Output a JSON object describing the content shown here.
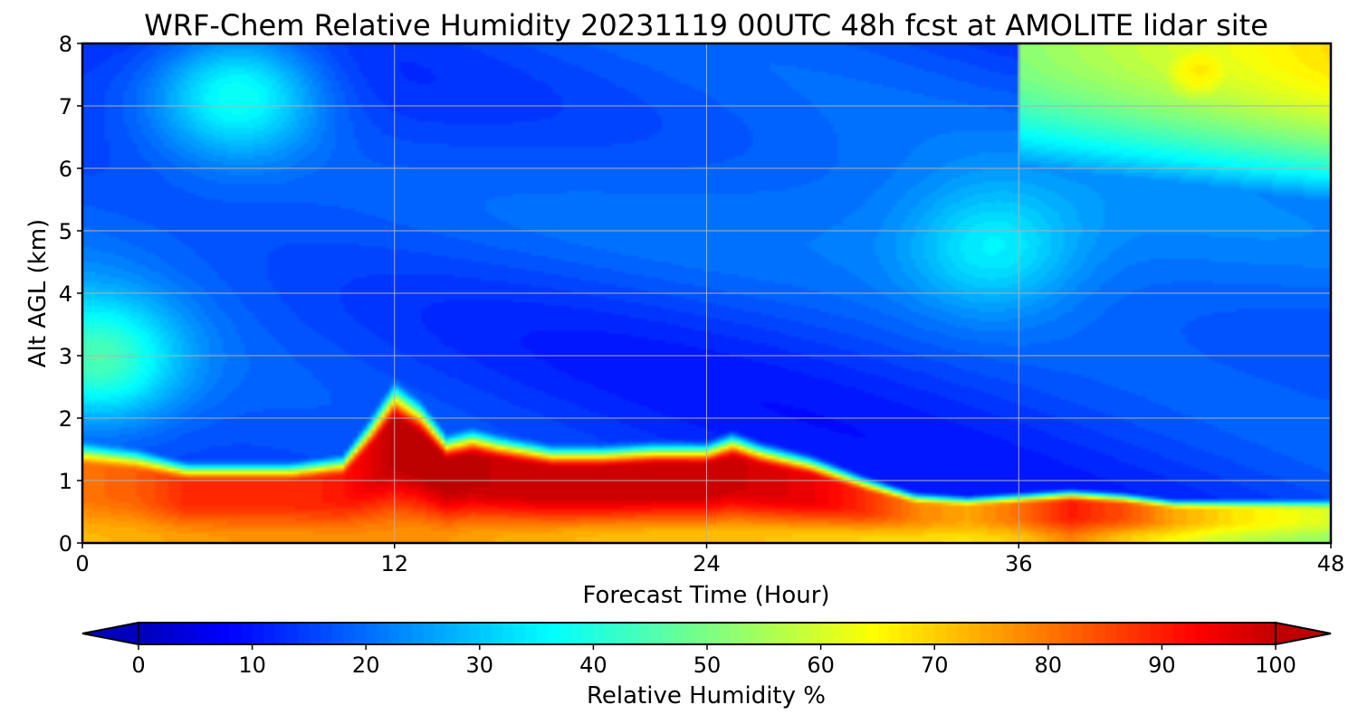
{
  "chart_data": {
    "type": "heatmap",
    "title": "WRF-Chem Relative Humidity 20231119 00UTC 48h fcst at AMOLITE lidar site",
    "xlabel": "Forecast Time (Hour)",
    "ylabel": "Alt AGL (km)",
    "xlim": [
      0,
      48
    ],
    "ylim": [
      0,
      8
    ],
    "xticks": [
      0,
      12,
      24,
      36,
      48
    ],
    "yticks": [
      0,
      1,
      2,
      3,
      4,
      5,
      6,
      7,
      8
    ],
    "grid": true,
    "colormap": "jet",
    "colorbar": {
      "label": "Relative Humidity %",
      "range": [
        0,
        100
      ],
      "ticks": [
        0,
        10,
        20,
        30,
        40,
        50,
        60,
        70,
        80,
        90,
        100
      ],
      "orientation": "horizontal",
      "extend": "both"
    },
    "boundary_layer_top_km": {
      "hours": [
        0,
        2,
        4,
        6,
        8,
        10,
        11,
        12,
        13,
        14,
        15,
        16,
        18,
        20,
        22,
        24,
        25,
        26,
        28,
        30,
        32,
        34,
        36,
        38,
        40,
        42,
        44,
        46,
        48
      ],
      "values": [
        1.5,
        1.4,
        1.2,
        1.2,
        1.2,
        1.3,
        1.8,
        2.4,
        2.1,
        1.6,
        1.7,
        1.6,
        1.45,
        1.45,
        1.5,
        1.5,
        1.65,
        1.5,
        1.3,
        1.0,
        0.75,
        0.7,
        0.75,
        0.8,
        0.75,
        0.65,
        0.65,
        0.65,
        0.65
      ]
    },
    "near_surface_humidity_pct": {
      "hours": [
        0,
        2,
        4,
        6,
        8,
        10,
        12,
        14,
        16,
        18,
        20,
        22,
        24,
        26,
        28,
        30,
        32,
        34,
        36,
        38,
        40,
        42,
        44,
        46,
        48
      ],
      "values": [
        72,
        73,
        75,
        76,
        76,
        77,
        77,
        76,
        74,
        73,
        72,
        71,
        71,
        71,
        70,
        69,
        68,
        67,
        70,
        78,
        70,
        64,
        58,
        55,
        52
      ]
    },
    "core_humidity_pct": {
      "hours": [
        0,
        2,
        4,
        6,
        8,
        10,
        12,
        14,
        16,
        18,
        20,
        22,
        24,
        26,
        28,
        30,
        32,
        34,
        36,
        38,
        40,
        42,
        44,
        46,
        48
      ],
      "values": [
        80,
        82,
        88,
        88,
        88,
        90,
        100,
        100,
        99,
        99,
        99,
        99,
        99,
        97,
        95,
        88,
        78,
        74,
        80,
        90,
        84,
        74,
        68,
        64,
        60
      ]
    },
    "upper_air_features": [
      {
        "hour": 0.5,
        "alt_km": 2.9,
        "humidity_pct": 40
      },
      {
        "hour": 6,
        "alt_km": 7.2,
        "humidity_pct": 38
      },
      {
        "hour": 35,
        "alt_km": 4.7,
        "humidity_pct": 28
      },
      {
        "hour": 43,
        "alt_km": 7.6,
        "humidity_pct": 70
      }
    ]
  }
}
